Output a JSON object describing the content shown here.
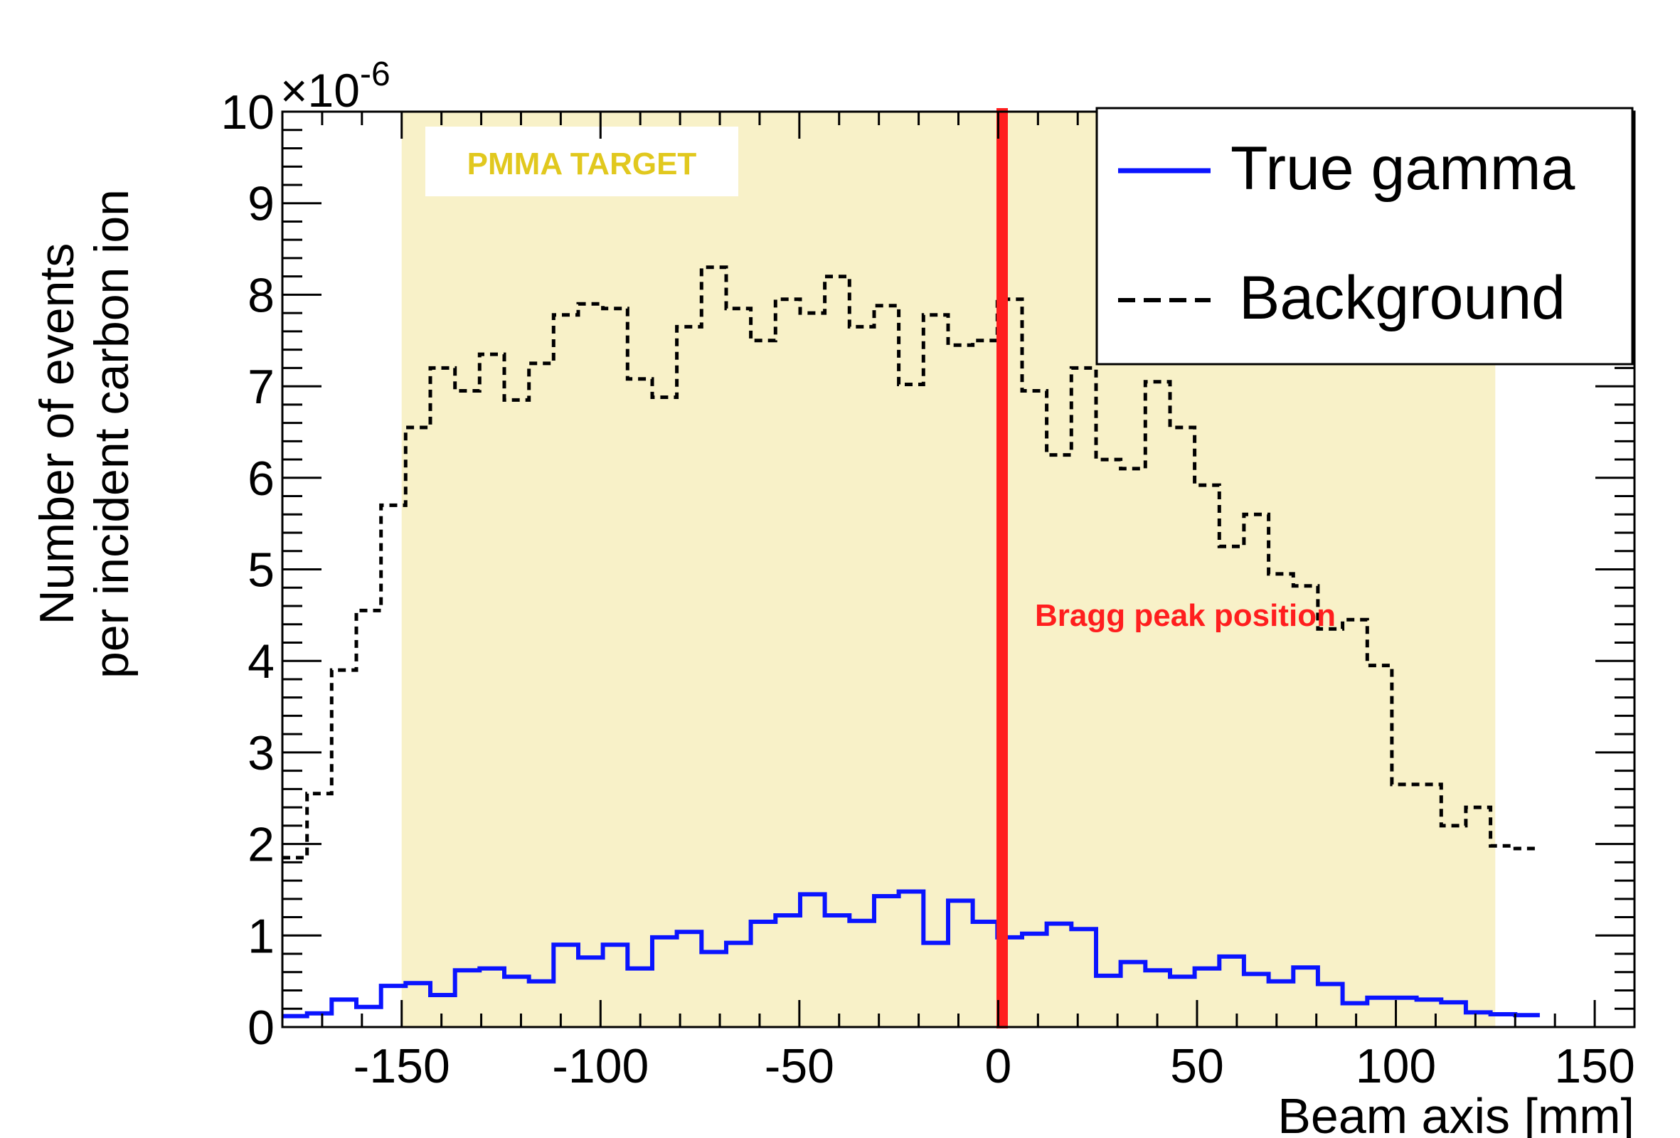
{
  "chart_data": {
    "type": "step",
    "xlabel": "Beam axis [mm]",
    "ylabel_line1": "Number of events",
    "ylabel_line2": "per incident carbon ion",
    "y_exponent_base": "×10",
    "y_exponent_power": "-6",
    "xlim": [
      -180,
      160
    ],
    "ylim": [
      0,
      10
    ],
    "x_ticks": [
      -150,
      -100,
      -50,
      0,
      50,
      100,
      150
    ],
    "y_ticks": [
      0,
      1,
      2,
      3,
      4,
      5,
      6,
      7,
      8,
      9,
      10
    ],
    "bin_width": 6.2,
    "target_region": {
      "x": [
        -150,
        125
      ],
      "label": "PMMA TARGET",
      "color": "#f8f1c8",
      "label_color": "#e1c81e"
    },
    "bragg_peak": {
      "x": 1,
      "label": "Bragg peak position",
      "color": "#ff1e1e"
    },
    "legend": {
      "position": "top-right"
    },
    "series": [
      {
        "name": "True gamma",
        "color": "#0a14ff",
        "style": "solid",
        "values": [
          0.12,
          0.15,
          0.3,
          0.22,
          0.45,
          0.48,
          0.35,
          0.62,
          0.64,
          0.55,
          0.5,
          0.9,
          0.76,
          0.9,
          0.64,
          0.98,
          1.04,
          0.82,
          0.92,
          1.15,
          1.22,
          1.45,
          1.22,
          1.16,
          1.43,
          1.48,
          0.92,
          1.38,
          1.15,
          0.98,
          1.02,
          1.13,
          1.07,
          0.56,
          0.71,
          0.62,
          0.55,
          0.64,
          0.77,
          0.58,
          0.5,
          0.65,
          0.47,
          0.26,
          0.32,
          0.32,
          0.3,
          0.27,
          0.16,
          0.14,
          0.13
        ]
      },
      {
        "name": "Background",
        "color": "#000000",
        "style": "dashed",
        "values": [
          1.85,
          2.55,
          3.9,
          4.55,
          5.7,
          6.55,
          7.2,
          6.95,
          7.35,
          6.85,
          7.25,
          7.78,
          7.9,
          7.85,
          7.08,
          6.88,
          7.65,
          8.3,
          7.85,
          7.5,
          7.95,
          7.8,
          8.2,
          7.65,
          7.88,
          7.02,
          7.78,
          7.45,
          7.5,
          7.95,
          6.95,
          6.25,
          7.2,
          6.2,
          6.1,
          7.05,
          6.55,
          5.92,
          5.25,
          5.6,
          4.95,
          4.82,
          4.35,
          4.45,
          3.95,
          2.65,
          2.65,
          2.2,
          2.4,
          1.98,
          1.95
        ]
      }
    ]
  }
}
